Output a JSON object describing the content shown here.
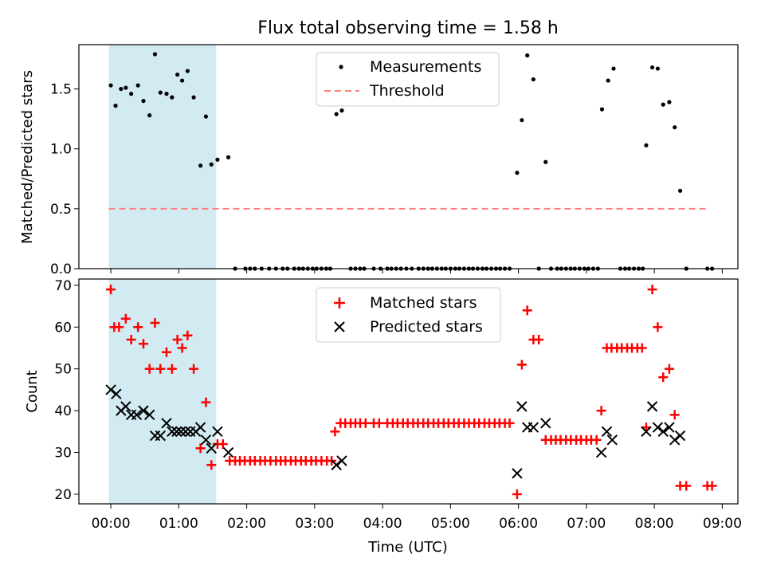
{
  "colors": {
    "shade": "#add8e6",
    "threshold": "#ff7f7f",
    "matched": "#ff0000",
    "predicted": "#000000",
    "measurement": "#000000"
  },
  "chart_data": [
    {
      "type": "scatter",
      "title": "Flux total observing time = 1.58 h",
      "xlabel": "",
      "ylabel": "Matched/Predicted stars",
      "xlim_hours": [
        -0.47,
        9.23
      ],
      "ylim": [
        0,
        1.87
      ],
      "yticks": [
        "0.0",
        "0.5",
        "1.0",
        "1.5"
      ],
      "highlight_span_hours": [
        -0.03,
        1.55
      ],
      "legend": {
        "placement": "top-center",
        "entries": [
          "Measurements",
          "Threshold"
        ]
      },
      "threshold": {
        "name": "Threshold",
        "y": 0.5,
        "x_range_hours": [
          -0.03,
          8.8
        ]
      },
      "series": [
        {
          "name": "Measurements",
          "points": [
            [
              0.0,
              1.53
            ],
            [
              0.07,
              1.36
            ],
            [
              0.15,
              1.5
            ],
            [
              0.22,
              1.51
            ],
            [
              0.3,
              1.46
            ],
            [
              0.4,
              1.53
            ],
            [
              0.48,
              1.4
            ],
            [
              0.57,
              1.28
            ],
            [
              0.65,
              1.79
            ],
            [
              0.73,
              1.47
            ],
            [
              0.82,
              1.46
            ],
            [
              0.9,
              1.43
            ],
            [
              0.98,
              1.62
            ],
            [
              1.05,
              1.57
            ],
            [
              1.13,
              1.65
            ],
            [
              1.22,
              1.43
            ],
            [
              1.32,
              0.86
            ],
            [
              1.4,
              1.27
            ],
            [
              1.48,
              0.87
            ],
            [
              1.57,
              0.91
            ],
            [
              1.73,
              0.93
            ],
            [
              1.83,
              0
            ],
            [
              1.98,
              0
            ],
            [
              2.05,
              0
            ],
            [
              2.12,
              0
            ],
            [
              2.22,
              0
            ],
            [
              2.33,
              0
            ],
            [
              2.43,
              0
            ],
            [
              2.53,
              0
            ],
            [
              2.6,
              0
            ],
            [
              2.7,
              0
            ],
            [
              2.77,
              0
            ],
            [
              2.83,
              0
            ],
            [
              2.9,
              0
            ],
            [
              2.97,
              0
            ],
            [
              3.03,
              0
            ],
            [
              3.1,
              0
            ],
            [
              3.17,
              0
            ],
            [
              3.23,
              0
            ],
            [
              3.32,
              1.29
            ],
            [
              3.4,
              1.32
            ],
            [
              3.53,
              0
            ],
            [
              3.6,
              0
            ],
            [
              3.67,
              0
            ],
            [
              3.73,
              0
            ],
            [
              3.87,
              0
            ],
            [
              3.97,
              0
            ],
            [
              4.07,
              0
            ],
            [
              4.13,
              0
            ],
            [
              4.2,
              0
            ],
            [
              4.27,
              0
            ],
            [
              4.35,
              0
            ],
            [
              4.43,
              0
            ],
            [
              4.53,
              0
            ],
            [
              4.6,
              0
            ],
            [
              4.67,
              0
            ],
            [
              4.73,
              0
            ],
            [
              4.8,
              0
            ],
            [
              4.87,
              0
            ],
            [
              4.93,
              0
            ],
            [
              5.0,
              0
            ],
            [
              5.07,
              0
            ],
            [
              5.13,
              0
            ],
            [
              5.2,
              0
            ],
            [
              5.27,
              0
            ],
            [
              5.33,
              0
            ],
            [
              5.4,
              0
            ],
            [
              5.47,
              0
            ],
            [
              5.53,
              0
            ],
            [
              5.6,
              0
            ],
            [
              5.67,
              0
            ],
            [
              5.73,
              0
            ],
            [
              5.8,
              0
            ],
            [
              5.87,
              0
            ],
            [
              5.98,
              0.8
            ],
            [
              6.05,
              1.24
            ],
            [
              6.13,
              1.78
            ],
            [
              6.22,
              1.58
            ],
            [
              6.3,
              0
            ],
            [
              6.4,
              0.89
            ],
            [
              6.48,
              0
            ],
            [
              6.57,
              0
            ],
            [
              6.63,
              0
            ],
            [
              6.7,
              0
            ],
            [
              6.77,
              0
            ],
            [
              6.83,
              0
            ],
            [
              6.9,
              0
            ],
            [
              6.97,
              0
            ],
            [
              7.03,
              0
            ],
            [
              7.1,
              0
            ],
            [
              7.17,
              0
            ],
            [
              7.23,
              1.33
            ],
            [
              7.32,
              1.57
            ],
            [
              7.4,
              1.67
            ],
            [
              7.5,
              0
            ],
            [
              7.57,
              0
            ],
            [
              7.63,
              0
            ],
            [
              7.7,
              0
            ],
            [
              7.77,
              0
            ],
            [
              7.83,
              0
            ],
            [
              7.88,
              1.03
            ],
            [
              7.97,
              1.68
            ],
            [
              8.05,
              1.67
            ],
            [
              8.13,
              1.37
            ],
            [
              8.22,
              1.39
            ],
            [
              8.3,
              1.18
            ],
            [
              8.38,
              0.65
            ],
            [
              8.47,
              0
            ],
            [
              8.78,
              0
            ],
            [
              8.85,
              0
            ]
          ]
        }
      ]
    },
    {
      "type": "scatter",
      "title": "",
      "xlabel": "Time (UTC)",
      "ylabel": "Count",
      "xlim_hours": [
        -0.47,
        9.23
      ],
      "ylim": [
        17.7,
        71.5
      ],
      "yticks": [
        "20",
        "30",
        "40",
        "50",
        "60",
        "70"
      ],
      "xticks": [
        "00:00",
        "01:00",
        "02:00",
        "03:00",
        "04:00",
        "05:00",
        "06:00",
        "07:00",
        "08:00",
        "09:00"
      ],
      "highlight_span_hours": [
        -0.03,
        1.55
      ],
      "legend": {
        "placement": "top-center",
        "entries": [
          "Matched stars",
          "Predicted stars"
        ]
      },
      "series": [
        {
          "name": "Matched stars",
          "marker": "plus",
          "points": [
            [
              0.0,
              69
            ],
            [
              0.05,
              60
            ],
            [
              0.12,
              60
            ],
            [
              0.22,
              62
            ],
            [
              0.3,
              57
            ],
            [
              0.4,
              60
            ],
            [
              0.48,
              56
            ],
            [
              0.57,
              50
            ],
            [
              0.65,
              61
            ],
            [
              0.73,
              50
            ],
            [
              0.82,
              54
            ],
            [
              0.9,
              50
            ],
            [
              0.98,
              57
            ],
            [
              1.05,
              55
            ],
            [
              1.13,
              58
            ],
            [
              1.22,
              50
            ],
            [
              1.32,
              31
            ],
            [
              1.4,
              42
            ],
            [
              1.48,
              27
            ],
            [
              1.57,
              32
            ],
            [
              1.65,
              32
            ],
            [
              1.75,
              28
            ],
            [
              1.83,
              28
            ],
            [
              1.9,
              28
            ],
            [
              1.97,
              28
            ],
            [
              2.05,
              28
            ],
            [
              2.12,
              28
            ],
            [
              2.2,
              28
            ],
            [
              2.27,
              28
            ],
            [
              2.35,
              28
            ],
            [
              2.43,
              28
            ],
            [
              2.5,
              28
            ],
            [
              2.57,
              28
            ],
            [
              2.65,
              28
            ],
            [
              2.72,
              28
            ],
            [
              2.8,
              28
            ],
            [
              2.87,
              28
            ],
            [
              2.95,
              28
            ],
            [
              3.02,
              28
            ],
            [
              3.1,
              28
            ],
            [
              3.18,
              28
            ],
            [
              3.25,
              28
            ],
            [
              3.3,
              35
            ],
            [
              3.38,
              37
            ],
            [
              3.45,
              37
            ],
            [
              3.53,
              37
            ],
            [
              3.6,
              37
            ],
            [
              3.67,
              37
            ],
            [
              3.75,
              37
            ],
            [
              3.87,
              37
            ],
            [
              3.95,
              37
            ],
            [
              4.07,
              37
            ],
            [
              4.15,
              37
            ],
            [
              4.22,
              37
            ],
            [
              4.3,
              37
            ],
            [
              4.37,
              37
            ],
            [
              4.45,
              37
            ],
            [
              4.52,
              37
            ],
            [
              4.6,
              37
            ],
            [
              4.67,
              37
            ],
            [
              4.75,
              37
            ],
            [
              4.82,
              37
            ],
            [
              4.9,
              37
            ],
            [
              4.97,
              37
            ],
            [
              5.05,
              37
            ],
            [
              5.12,
              37
            ],
            [
              5.2,
              37
            ],
            [
              5.27,
              37
            ],
            [
              5.35,
              37
            ],
            [
              5.42,
              37
            ],
            [
              5.5,
              37
            ],
            [
              5.57,
              37
            ],
            [
              5.65,
              37
            ],
            [
              5.72,
              37
            ],
            [
              5.8,
              37
            ],
            [
              5.87,
              37
            ],
            [
              5.98,
              20
            ],
            [
              6.05,
              51
            ],
            [
              6.13,
              64
            ],
            [
              6.22,
              57
            ],
            [
              6.3,
              57
            ],
            [
              6.4,
              33
            ],
            [
              6.48,
              33
            ],
            [
              6.55,
              33
            ],
            [
              6.62,
              33
            ],
            [
              6.7,
              33
            ],
            [
              6.77,
              33
            ],
            [
              6.85,
              33
            ],
            [
              6.92,
              33
            ],
            [
              7.0,
              33
            ],
            [
              7.07,
              33
            ],
            [
              7.15,
              33
            ],
            [
              7.22,
              40
            ],
            [
              7.3,
              55
            ],
            [
              7.37,
              55
            ],
            [
              7.45,
              55
            ],
            [
              7.52,
              55
            ],
            [
              7.6,
              55
            ],
            [
              7.67,
              55
            ],
            [
              7.75,
              55
            ],
            [
              7.82,
              55
            ],
            [
              7.88,
              36
            ],
            [
              7.97,
              69
            ],
            [
              8.05,
              60
            ],
            [
              8.13,
              48
            ],
            [
              8.22,
              50
            ],
            [
              8.3,
              39
            ],
            [
              8.38,
              22
            ],
            [
              8.47,
              22
            ],
            [
              8.78,
              22
            ],
            [
              8.85,
              22
            ]
          ]
        },
        {
          "name": "Predicted stars",
          "marker": "x",
          "points": [
            [
              0.0,
              45
            ],
            [
              0.08,
              44
            ],
            [
              0.15,
              40
            ],
            [
              0.22,
              41
            ],
            [
              0.3,
              39
            ],
            [
              0.38,
              39
            ],
            [
              0.48,
              40
            ],
            [
              0.57,
              39
            ],
            [
              0.65,
              34
            ],
            [
              0.73,
              34
            ],
            [
              0.82,
              37
            ],
            [
              0.9,
              35
            ],
            [
              0.97,
              35
            ],
            [
              1.03,
              35
            ],
            [
              1.1,
              35
            ],
            [
              1.17,
              35
            ],
            [
              1.25,
              35
            ],
            [
              1.32,
              36
            ],
            [
              1.4,
              33
            ],
            [
              1.48,
              31
            ],
            [
              1.57,
              35
            ],
            [
              1.73,
              30
            ],
            [
              3.32,
              27
            ],
            [
              3.4,
              28
            ],
            [
              5.98,
              25
            ],
            [
              6.05,
              41
            ],
            [
              6.13,
              36
            ],
            [
              6.22,
              36
            ],
            [
              6.4,
              37
            ],
            [
              7.22,
              30
            ],
            [
              7.3,
              35
            ],
            [
              7.38,
              33
            ],
            [
              7.88,
              35
            ],
            [
              7.97,
              41
            ],
            [
              8.05,
              36
            ],
            [
              8.13,
              35
            ],
            [
              8.22,
              36
            ],
            [
              8.3,
              33
            ],
            [
              8.38,
              34
            ]
          ]
        }
      ]
    }
  ]
}
